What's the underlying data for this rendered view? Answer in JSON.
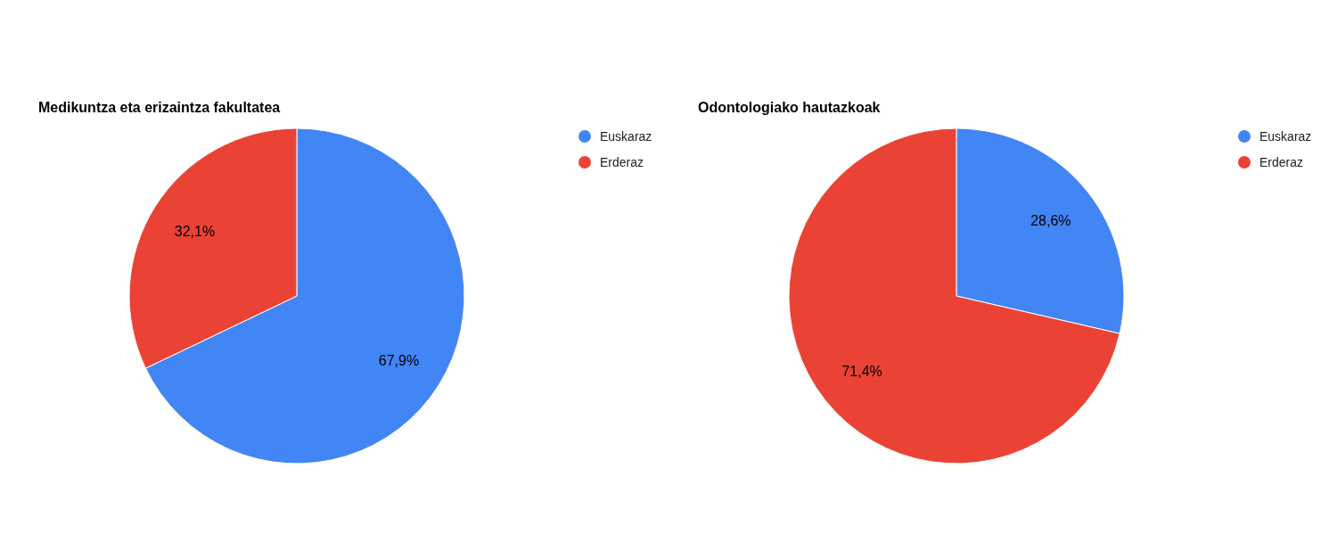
{
  "chart_data": [
    {
      "type": "pie",
      "title": "Medikuntza eta erizaintza fakultatea",
      "categories": [
        "Euskaraz",
        "Erderaz"
      ],
      "values": [
        67.9,
        32.1
      ],
      "colors": [
        "#4285f4",
        "#ea4335"
      ],
      "value_labels": [
        "67,9%",
        "32,1%"
      ],
      "legend": "right"
    },
    {
      "type": "pie",
      "title": "Odontologiako hautazkoak",
      "categories": [
        "Euskaraz",
        "Erderaz"
      ],
      "values": [
        28.6,
        71.4
      ],
      "colors": [
        "#4285f4",
        "#ea4335"
      ],
      "value_labels": [
        "28,6%",
        "71,4%"
      ],
      "legend": "right"
    }
  ]
}
